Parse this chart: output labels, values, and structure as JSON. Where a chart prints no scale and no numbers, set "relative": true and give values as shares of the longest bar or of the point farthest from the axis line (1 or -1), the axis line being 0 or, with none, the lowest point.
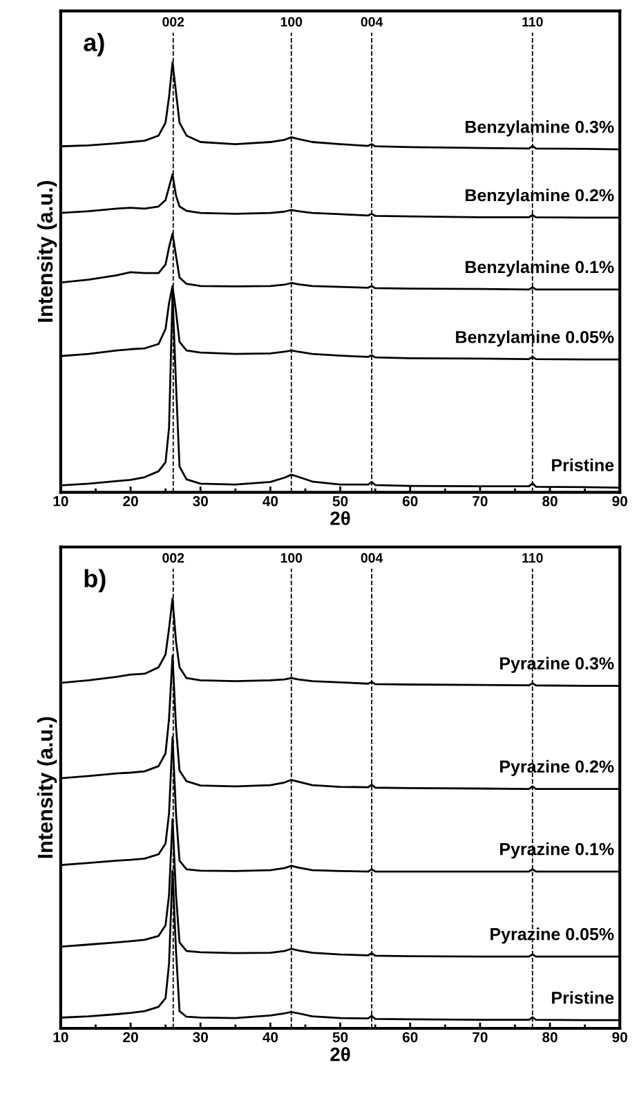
{
  "chart_data": [
    {
      "type": "line",
      "relative": true,
      "xlabel": "2θ",
      "ylabel": "Intensity (a.u.)",
      "annotations": [
        "a)",
        "002",
        "100",
        "004",
        "110"
      ],
      "xlim": [
        10,
        90
      ],
      "xticks": [
        10,
        20,
        30,
        40,
        50,
        60,
        70,
        80,
        90
      ],
      "tick_labels": "x",
      "grid": false,
      "legend": false,
      "marker": "none",
      "line_style": "solid",
      "x": [
        10,
        14,
        18,
        20,
        22,
        24,
        25,
        25.5,
        26,
        26.5,
        27,
        28,
        30,
        35,
        40,
        42,
        43,
        44,
        46,
        50,
        54,
        54.5,
        55,
        60,
        70,
        77,
        77.5,
        78,
        85,
        90
      ],
      "ref_lines": [
        {
          "axis": "x",
          "value": 26.1,
          "color": "#000000",
          "line_style": "dashed"
        },
        {
          "axis": "x",
          "value": 43.0,
          "color": "#000000",
          "line_style": "dashed"
        },
        {
          "axis": "x",
          "value": 54.5,
          "color": "#000000",
          "line_style": "dashed"
        },
        {
          "axis": "x",
          "value": 77.5,
          "color": "#000000",
          "line_style": "dashed"
        }
      ],
      "series": [
        {
          "name": "Benzylamine 0.3%",
          "color": "#000000",
          "values": [
            0.805,
            0.807,
            0.812,
            0.815,
            0.818,
            0.83,
            0.86,
            0.92,
            1.0,
            0.93,
            0.86,
            0.83,
            0.815,
            0.81,
            0.815,
            0.82,
            0.826,
            0.822,
            0.815,
            0.81,
            0.806,
            0.81,
            0.805,
            0.803,
            0.801,
            0.8,
            0.806,
            0.8,
            0.799,
            0.798
          ]
        },
        {
          "name": "Benzylamine 0.2%",
          "color": "#000000",
          "values": [
            0.65,
            0.654,
            0.66,
            0.662,
            0.66,
            0.665,
            0.68,
            0.71,
            0.74,
            0.69,
            0.665,
            0.655,
            0.65,
            0.648,
            0.65,
            0.653,
            0.657,
            0.654,
            0.65,
            0.647,
            0.644,
            0.648,
            0.643,
            0.642,
            0.64,
            0.64,
            0.645,
            0.64,
            0.639,
            0.639
          ]
        },
        {
          "name": "Benzylamine 0.1%",
          "color": "#000000",
          "values": [
            0.488,
            0.495,
            0.505,
            0.512,
            0.51,
            0.51,
            0.53,
            0.57,
            0.602,
            0.55,
            0.5,
            0.485,
            0.48,
            0.479,
            0.48,
            0.483,
            0.487,
            0.484,
            0.48,
            0.478,
            0.476,
            0.48,
            0.475,
            0.474,
            0.473,
            0.472,
            0.477,
            0.472,
            0.472,
            0.472
          ]
        },
        {
          "name": "Benzylamine 0.05%",
          "color": "#000000",
          "values": [
            0.317,
            0.322,
            0.33,
            0.333,
            0.335,
            0.345,
            0.38,
            0.44,
            0.48,
            0.42,
            0.35,
            0.33,
            0.325,
            0.322,
            0.323,
            0.327,
            0.33,
            0.327,
            0.322,
            0.318,
            0.315,
            0.319,
            0.314,
            0.312,
            0.311,
            0.31,
            0.315,
            0.31,
            0.309,
            0.309
          ]
        },
        {
          "name": "Pristine",
          "color": "#000000",
          "values": [
            0.016,
            0.02,
            0.026,
            0.029,
            0.035,
            0.049,
            0.07,
            0.15,
            0.463,
            0.25,
            0.06,
            0.03,
            0.02,
            0.018,
            0.024,
            0.034,
            0.041,
            0.036,
            0.025,
            0.018,
            0.018,
            0.024,
            0.017,
            0.015,
            0.014,
            0.014,
            0.021,
            0.013,
            0.012,
            0.011
          ]
        }
      ]
    },
    {
      "type": "line",
      "relative": true,
      "xlabel": "2θ",
      "ylabel": "Intensity (a.u.)",
      "annotations": [
        "b)",
        "002",
        "100",
        "004",
        "110"
      ],
      "xlim": [
        10,
        90
      ],
      "xticks": [
        10,
        20,
        30,
        40,
        50,
        60,
        70,
        80,
        90
      ],
      "tick_labels": "x",
      "grid": false,
      "legend": false,
      "marker": "none",
      "line_style": "solid",
      "x": [
        10,
        14,
        18,
        20,
        22,
        24,
        25,
        25.5,
        26,
        26.5,
        27,
        28,
        30,
        35,
        40,
        42,
        43,
        44,
        46,
        50,
        54,
        54.5,
        55,
        60,
        70,
        77,
        77.5,
        78,
        85,
        90
      ],
      "ref_lines": [
        {
          "axis": "x",
          "value": 26.1,
          "color": "#000000",
          "line_style": "dashed"
        },
        {
          "axis": "x",
          "value": 43.0,
          "color": "#000000",
          "line_style": "dashed"
        },
        {
          "axis": "x",
          "value": 54.5,
          "color": "#000000",
          "line_style": "dashed"
        },
        {
          "axis": "x",
          "value": 77.5,
          "color": "#000000",
          "line_style": "dashed"
        }
      ],
      "series": [
        {
          "name": "Pyrazine 0.3%",
          "color": "#000000",
          "values": [
            0.804,
            0.81,
            0.818,
            0.823,
            0.825,
            0.84,
            0.87,
            0.93,
            1.0,
            0.9,
            0.84,
            0.815,
            0.81,
            0.808,
            0.81,
            0.812,
            0.815,
            0.812,
            0.808,
            0.805,
            0.802,
            0.806,
            0.801,
            0.8,
            0.799,
            0.798,
            0.803,
            0.798,
            0.797,
            0.797
          ]
        },
        {
          "name": "Pyrazine 0.2%",
          "color": "#000000",
          "values": [
            0.582,
            0.587,
            0.593,
            0.595,
            0.598,
            0.61,
            0.64,
            0.72,
            0.867,
            0.7,
            0.6,
            0.575,
            0.565,
            0.563,
            0.566,
            0.572,
            0.578,
            0.574,
            0.566,
            0.562,
            0.561,
            0.567,
            0.56,
            0.559,
            0.558,
            0.557,
            0.563,
            0.557,
            0.557,
            0.557
          ]
        },
        {
          "name": "Pyrazine 0.1%",
          "color": "#000000",
          "values": [
            0.38,
            0.385,
            0.39,
            0.392,
            0.395,
            0.405,
            0.43,
            0.5,
            0.677,
            0.5,
            0.39,
            0.37,
            0.367,
            0.366,
            0.368,
            0.373,
            0.378,
            0.374,
            0.368,
            0.366,
            0.365,
            0.37,
            0.365,
            0.365,
            0.365,
            0.365,
            0.37,
            0.365,
            0.365,
            0.365
          ]
        },
        {
          "name": "Pyrazine 0.05%",
          "color": "#000000",
          "values": [
            0.19,
            0.195,
            0.2,
            0.203,
            0.206,
            0.215,
            0.24,
            0.31,
            0.487,
            0.31,
            0.2,
            0.18,
            0.177,
            0.175,
            0.176,
            0.18,
            0.185,
            0.181,
            0.176,
            0.172,
            0.17,
            0.175,
            0.169,
            0.168,
            0.167,
            0.167,
            0.172,
            0.167,
            0.167,
            0.167
          ]
        },
        {
          "name": "Pristine",
          "color": "#000000",
          "values": [
            0.025,
            0.028,
            0.033,
            0.036,
            0.04,
            0.05,
            0.07,
            0.15,
            0.367,
            0.18,
            0.04,
            0.027,
            0.025,
            0.024,
            0.03,
            0.035,
            0.038,
            0.035,
            0.028,
            0.024,
            0.023,
            0.029,
            0.022,
            0.021,
            0.02,
            0.02,
            0.026,
            0.02,
            0.019,
            0.019
          ]
        }
      ]
    }
  ]
}
